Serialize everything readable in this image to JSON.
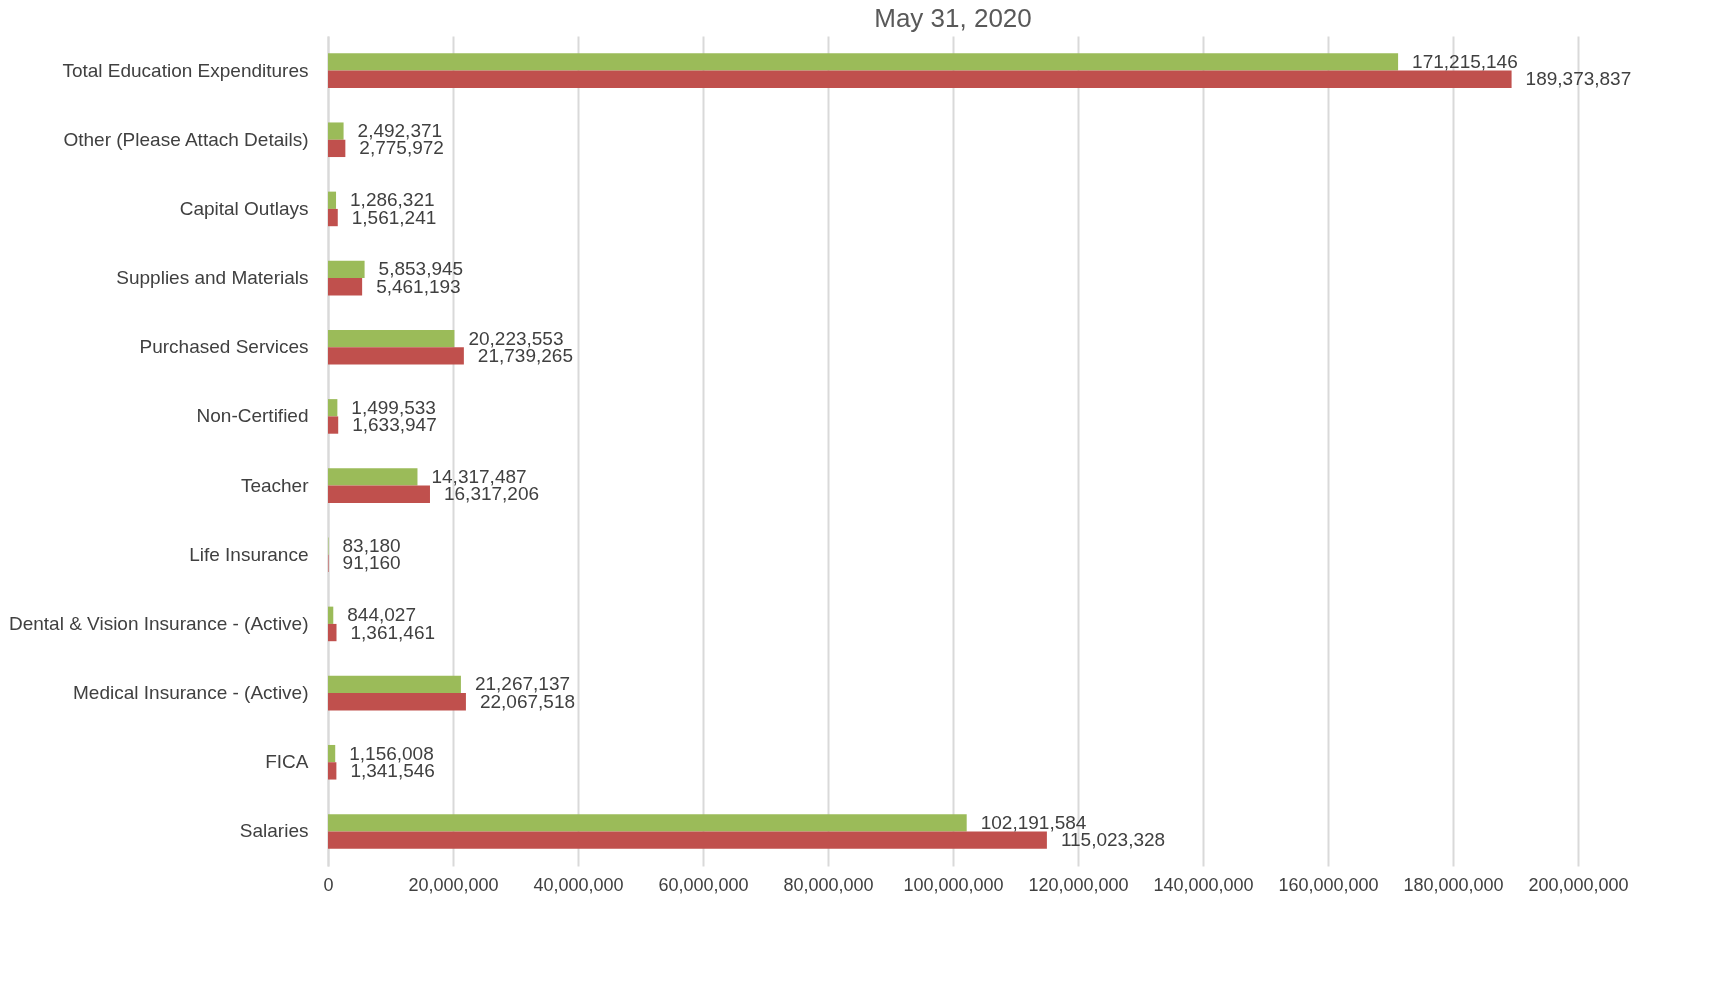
{
  "chart_data": {
    "type": "bar",
    "orientation": "horizontal",
    "title": "May 31, 2020",
    "categories": [
      "Total Education Expenditures",
      "Other (Please Attach Details)",
      "Capital Outlays",
      "Supplies and Materials",
      "Purchased Services",
      "Non-Certified",
      "Teacher",
      "Life Insurance",
      "Dental & Vision Insurance - (Active)",
      "Medical Insurance - (Active)",
      "FICA",
      "Salaries"
    ],
    "series": [
      {
        "color": "#9bbb59",
        "values": [
          171215146,
          2492371,
          1286321,
          5853945,
          20223553,
          1499533,
          14317487,
          83180,
          844027,
          21267137,
          1156008,
          102191584
        ],
        "value_labels": [
          "171,215,146",
          "2,492,371",
          "1,286,321",
          "5,853,945",
          "20,223,553",
          "1,499,533",
          "14,317,487",
          "83,180",
          "844,027",
          "21,267,137",
          "1,156,008",
          "102,191,584"
        ]
      },
      {
        "color": "#c0504d",
        "values": [
          189373837,
          2775972,
          1561241,
          5461193,
          21739265,
          1633947,
          16317206,
          91160,
          1361461,
          22067518,
          1341546,
          115023328
        ],
        "value_labels": [
          "189,373,837",
          "2,775,972",
          "1,561,241",
          "5,461,193",
          "21,739,265",
          "1,633,947",
          "16,317,206",
          "91,160",
          "1,361,461",
          "22,067,518",
          "1,341,546",
          "115,023,328"
        ]
      }
    ],
    "xlim": [
      0,
      200000000
    ],
    "xticks": [
      0,
      {
        "value": 20000000,
        "label": "20,000,000"
      },
      {
        "value": 40000000,
        "label": "40,000,000"
      },
      {
        "value": 60000000,
        "label": "60,000,000"
      },
      {
        "value": 80000000,
        "label": "80,000,000"
      },
      {
        "value": 100000000,
        "label": "100,000,000"
      },
      {
        "value": 120000000,
        "label": "120,000,000"
      },
      {
        "value": 140000000,
        "label": "140,000,000"
      },
      {
        "value": 160000000,
        "label": "160,000,000"
      },
      {
        "value": 180000000,
        "label": "180,000,000"
      },
      {
        "value": 200000000,
        "label": "200,000,000"
      }
    ],
    "grid": "x"
  }
}
